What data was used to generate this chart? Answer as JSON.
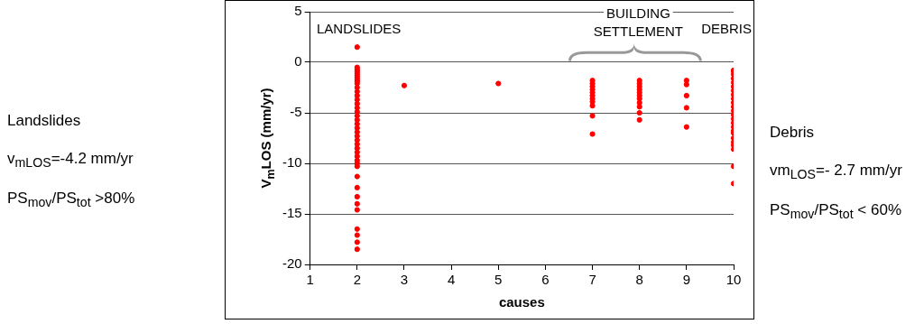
{
  "chart_data": {
    "type": "scatter",
    "xlabel": "causes",
    "ylabel": "V$_{m}$LOS (mm/yr)",
    "xlim": [
      1,
      10
    ],
    "xticks": [
      1,
      2,
      3,
      4,
      5,
      6,
      7,
      8,
      9,
      10
    ],
    "ylim": [
      -20,
      5
    ],
    "yticks": [
      -20,
      -15,
      -10,
      -5,
      0,
      5
    ],
    "grid": "y",
    "marker": "circle",
    "legend": false,
    "series": [
      {
        "color": "#ff0000",
        "x": [
          2,
          2,
          2,
          2,
          2,
          2,
          2,
          2,
          2,
          2,
          2,
          2,
          2,
          2,
          2,
          2,
          2,
          2,
          2,
          2,
          2,
          2,
          2,
          2,
          2,
          2,
          2,
          2,
          2,
          2,
          2,
          2,
          2,
          2,
          2,
          2,
          2,
          2,
          2,
          2,
          3,
          5,
          7,
          7,
          7,
          7,
          7,
          7,
          7,
          7,
          7,
          7,
          7,
          8,
          8,
          8,
          8,
          8,
          8,
          8,
          8,
          8,
          8,
          8,
          9,
          9,
          9,
          9,
          9,
          10,
          10,
          10,
          10,
          10,
          10,
          10,
          10,
          10,
          10,
          10,
          10,
          10,
          10,
          10,
          10,
          10,
          10,
          10,
          10,
          10,
          10,
          10,
          10
        ],
        "values": [
          1.5,
          -0.5,
          -0.9,
          -1.3,
          -1.7,
          -2.1,
          -2.5,
          -2.9,
          -3.3,
          -3.7,
          -4.1,
          -4.5,
          -4.9,
          -5.3,
          -5.7,
          -6.1,
          -6.5,
          -6.9,
          -7.3,
          -7.7,
          -8.1,
          -8.5,
          -8.9,
          -9.3,
          -9.7,
          -10,
          -10.3,
          -11.3,
          -12.4,
          -13.3,
          -14,
          -14.6,
          -16.5,
          -17.1,
          -17.8,
          -18.5,
          -0.7,
          -1.1,
          -1.5,
          -1.9,
          -2.3,
          -2.1,
          -1.8,
          -2.1,
          -2.4,
          -2.7,
          -3,
          -3.3,
          -3.6,
          -3.9,
          -4.3,
          -5.3,
          -7.1,
          -1.8,
          -2.1,
          -2.4,
          -2.7,
          -3,
          -3.3,
          -3.6,
          -4,
          -4.4,
          -5,
          -5.7,
          -1.8,
          -2.2,
          -3.3,
          -4.5,
          -6.4,
          -0.8,
          -1.2,
          -1.6,
          -2,
          -2.4,
          -2.8,
          -3.2,
          -3.6,
          -4,
          -4.4,
          -4.8,
          -5.2,
          -5.6,
          -6,
          -6.4,
          -6.8,
          -7,
          -7.5,
          -7.9,
          -8.2,
          -8.6,
          -10.3,
          -12,
          -0.9
        ]
      }
    ],
    "annotations": [
      "LANDSLIDES",
      "BUILDING SETTLEMENT",
      "DEBRIS",
      "Landslides",
      "v$_{mLOS}$=-4.2 mm/yr",
      "PS$_{mov}$/PS$_{tot}$ >80%",
      "Debris",
      "vm$_{LOS}$=- 2.7 mm/yr",
      "PS$_{mov}$/PS$_{tot}$ < 60%"
    ]
  }
}
